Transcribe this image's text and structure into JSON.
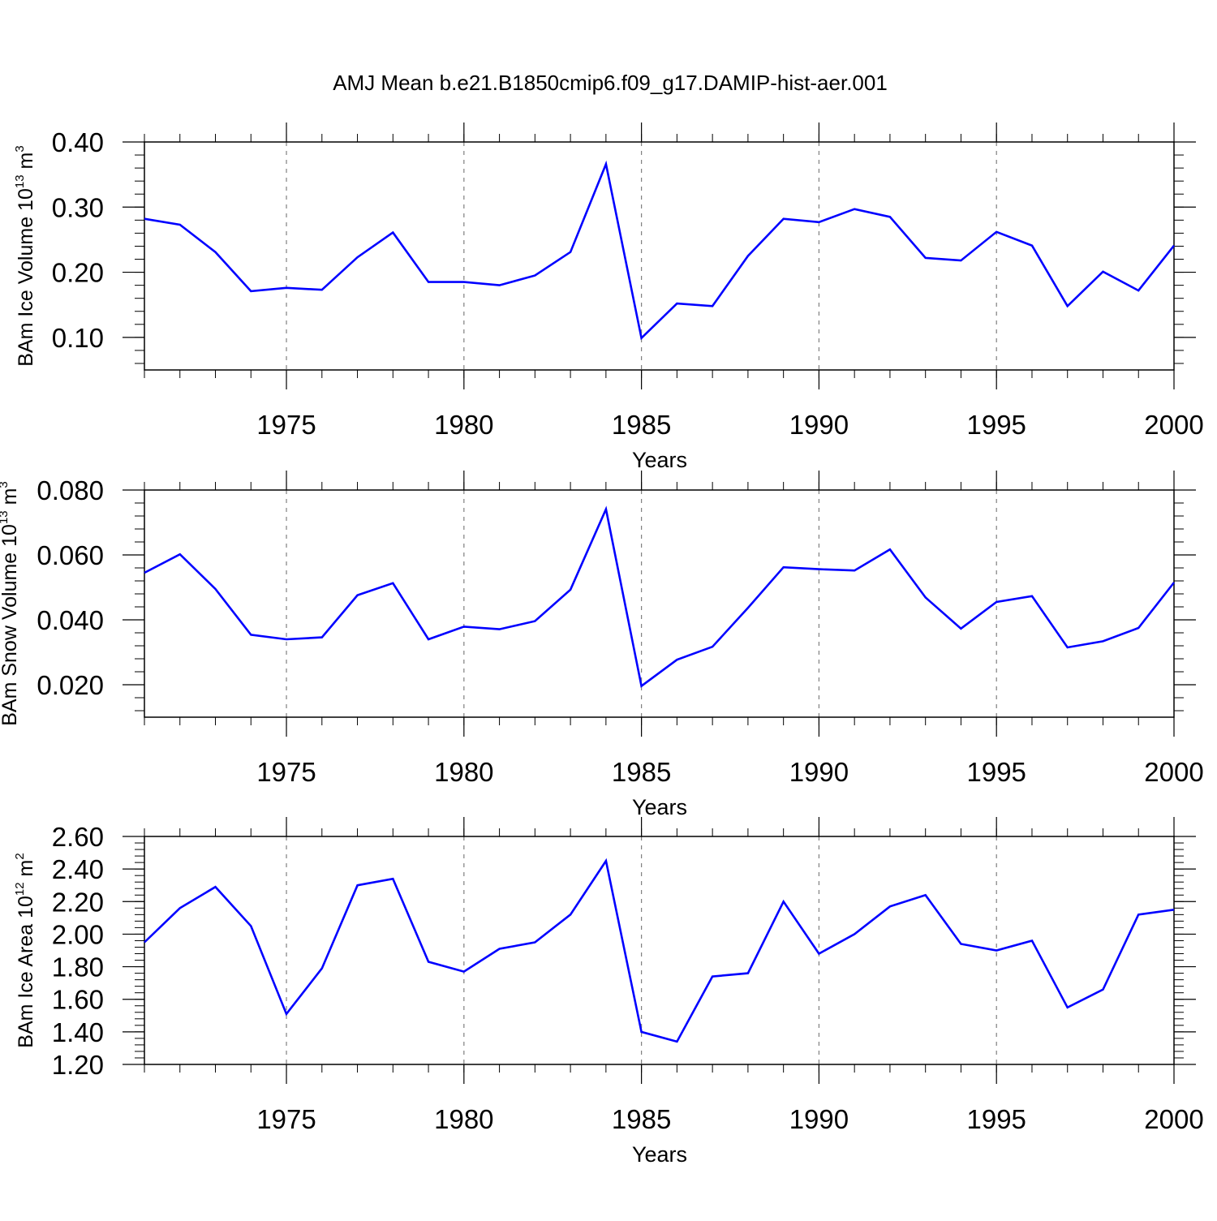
{
  "page_title": "AMJ Mean b.e21.B1850cmip6.f09_g17.DAMIP-hist-aer.001",
  "chart_data": [
    {
      "type": "line",
      "xlabel": "Years",
      "ylabel": {
        "prefix": "BAm Ice Volume 10",
        "exponent": "13",
        "unit": " m",
        "unit_exponent": "3"
      },
      "xlim": [
        1971,
        2000
      ],
      "ylim": [
        0.05,
        0.4
      ],
      "xticks": [
        1975,
        1980,
        1985,
        1990,
        1995,
        2000
      ],
      "yticks": [
        0.1,
        0.2,
        0.3,
        0.4
      ],
      "ytick_labels": [
        "0.10",
        "0.20",
        "0.30",
        "0.40"
      ],
      "grid": "x-dashed",
      "series": [
        {
          "name": "BAm Ice Volume",
          "color": "#0000ff",
          "x": [
            1971,
            1972,
            1973,
            1974,
            1975,
            1976,
            1977,
            1978,
            1979,
            1980,
            1981,
            1982,
            1983,
            1984,
            1985,
            1986,
            1987,
            1988,
            1989,
            1990,
            1991,
            1992,
            1993,
            1994,
            1995,
            1996,
            1997,
            1998,
            1999,
            2000
          ],
          "y": [
            0.282,
            0.273,
            0.231,
            0.171,
            0.176,
            0.173,
            0.223,
            0.261,
            0.185,
            0.185,
            0.18,
            0.195,
            0.231,
            0.366,
            0.099,
            0.152,
            0.148,
            0.225,
            0.282,
            0.277,
            0.297,
            0.285,
            0.222,
            0.218,
            0.262,
            0.241,
            0.148,
            0.201,
            0.172,
            0.241
          ]
        }
      ]
    },
    {
      "type": "line",
      "xlabel": "Years",
      "ylabel": {
        "prefix": "BAm Snow Volume 10",
        "exponent": "13",
        "unit": " m",
        "unit_exponent": "3"
      },
      "xlim": [
        1971,
        2000
      ],
      "ylim": [
        0.01,
        0.08
      ],
      "xticks": [
        1975,
        1980,
        1985,
        1990,
        1995,
        2000
      ],
      "yticks": [
        0.02,
        0.04,
        0.06,
        0.08
      ],
      "ytick_labels": [
        "0.020",
        "0.040",
        "0.060",
        "0.080"
      ],
      "grid": "x-dashed",
      "series": [
        {
          "name": "BAm Snow Volume",
          "color": "#0000ff",
          "x": [
            1971,
            1972,
            1973,
            1974,
            1975,
            1976,
            1977,
            1978,
            1979,
            1980,
            1981,
            1982,
            1983,
            1984,
            1985,
            1986,
            1987,
            1988,
            1989,
            1990,
            1991,
            1992,
            1993,
            1994,
            1995,
            1996,
            1997,
            1998,
            1999,
            2000
          ],
          "y": [
            0.0545,
            0.0602,
            0.0495,
            0.0354,
            0.034,
            0.0346,
            0.0476,
            0.0513,
            0.034,
            0.0379,
            0.0371,
            0.0396,
            0.0493,
            0.0741,
            0.0196,
            0.0277,
            0.0317,
            0.0437,
            0.0562,
            0.0556,
            0.0552,
            0.0617,
            0.0469,
            0.0373,
            0.0455,
            0.0473,
            0.0315,
            0.0334,
            0.0375,
            0.0515
          ]
        }
      ]
    },
    {
      "type": "line",
      "xlabel": "Years",
      "ylabel": {
        "prefix": "BAm Ice Area 10",
        "exponent": "12",
        "unit": " m",
        "unit_exponent": "2"
      },
      "xlim": [
        1971,
        2000
      ],
      "ylim": [
        1.2,
        2.6
      ],
      "xticks": [
        1975,
        1980,
        1985,
        1990,
        1995,
        2000
      ],
      "yticks": [
        1.2,
        1.4,
        1.6,
        1.8,
        2.0,
        2.2,
        2.4,
        2.6
      ],
      "ytick_labels": [
        "1.20",
        "1.40",
        "1.60",
        "1.80",
        "2.00",
        "2.20",
        "2.40",
        "2.60"
      ],
      "grid": "x-dashed",
      "series": [
        {
          "name": "BAm Ice Area",
          "color": "#0000ff",
          "x": [
            1971,
            1972,
            1973,
            1974,
            1975,
            1976,
            1977,
            1978,
            1979,
            1980,
            1981,
            1982,
            1983,
            1984,
            1985,
            1986,
            1987,
            1988,
            1989,
            1990,
            1991,
            1992,
            1993,
            1994,
            1995,
            1996,
            1997,
            1998,
            1999,
            2000
          ],
          "y": [
            1.95,
            2.16,
            2.29,
            2.05,
            1.51,
            1.79,
            2.3,
            2.34,
            1.83,
            1.77,
            1.91,
            1.95,
            2.12,
            2.45,
            1.4,
            1.34,
            1.74,
            1.76,
            2.2,
            1.88,
            2.0,
            2.17,
            2.24,
            1.94,
            1.9,
            1.96,
            1.55,
            1.66,
            2.12,
            2.15
          ]
        }
      ]
    }
  ]
}
